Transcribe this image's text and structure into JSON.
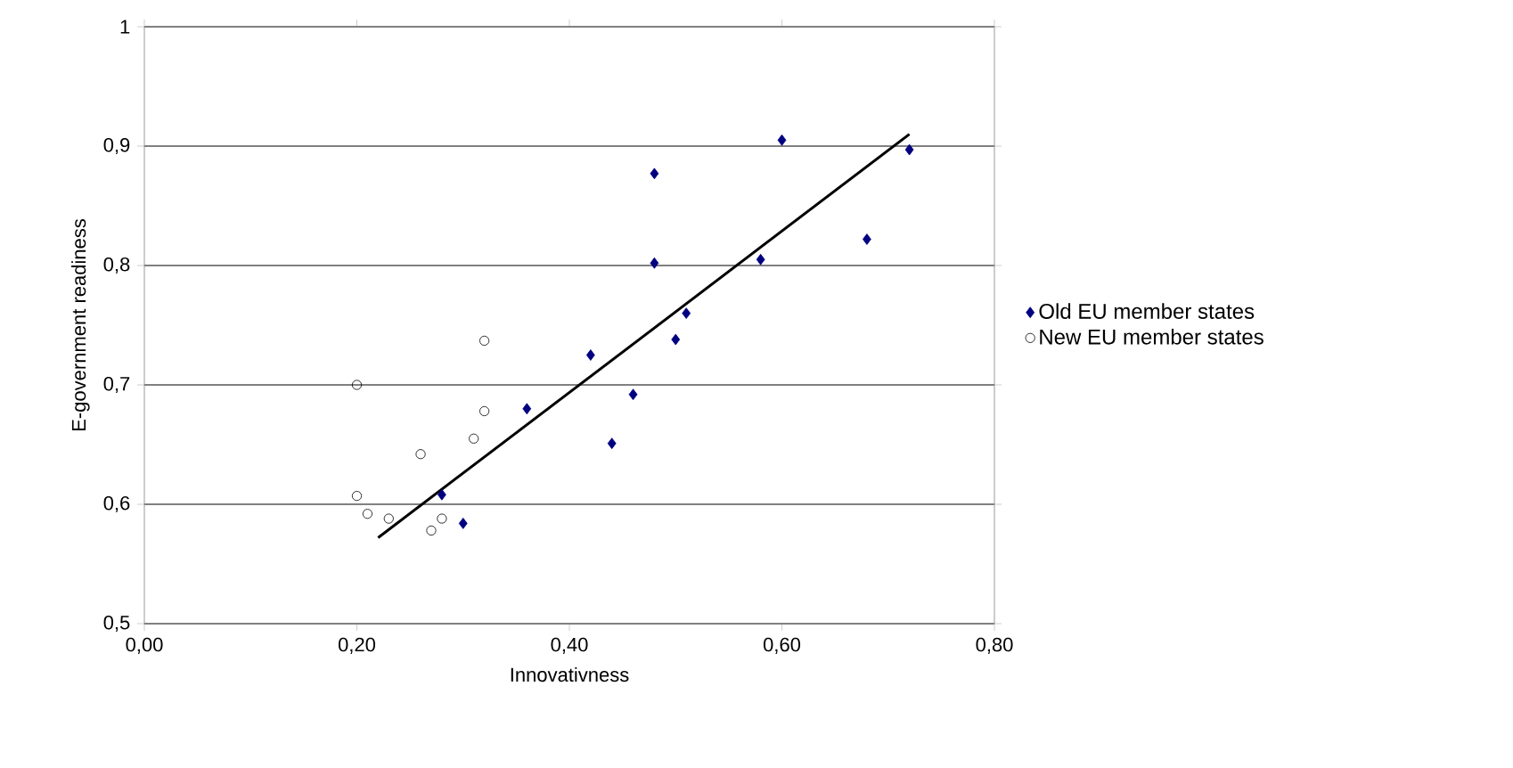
{
  "chart_data": {
    "type": "scatter",
    "xlabel": "Innovativness",
    "ylabel": "E-government readiness",
    "xlim": [
      0,
      0.8
    ],
    "ylim": [
      0.5,
      1
    ],
    "xticks": [
      {
        "value": 0,
        "label": "0,00"
      },
      {
        "value": 0.2,
        "label": "0,20"
      },
      {
        "value": 0.4,
        "label": "0,40"
      },
      {
        "value": 0.6,
        "label": "0,60"
      },
      {
        "value": 0.8,
        "label": "0,80"
      }
    ],
    "yticks": [
      {
        "value": 0.5,
        "label": "0,5"
      },
      {
        "value": 0.6,
        "label": "0,6"
      },
      {
        "value": 0.7,
        "label": "0,7"
      },
      {
        "value": 0.8,
        "label": "0,8"
      },
      {
        "value": 0.9,
        "label": "0,9"
      },
      1
    ],
    "grid": "y",
    "legend": "right",
    "series": [
      {
        "name": "Old EU member states",
        "color": "#000080",
        "marker": "diamond",
        "x": [
          0.6,
          0.72,
          0.48,
          0.48,
          0.58,
          0.68,
          0.51,
          0.5,
          0.42,
          0.46,
          0.36,
          0.44,
          0.28,
          0.3
        ],
        "values": [
          0.905,
          0.897,
          0.877,
          0.802,
          0.805,
          0.822,
          0.76,
          0.738,
          0.725,
          0.692,
          0.68,
          0.651,
          0.608,
          0.584
        ]
      },
      {
        "name": "New EU member states",
        "color": "#000000",
        "marker": "circle",
        "x": [
          0.2,
          0.32,
          0.32,
          0.31,
          0.26,
          0.2,
          0.21,
          0.23,
          0.28,
          0.27
        ],
        "values": [
          0.7,
          0.737,
          0.678,
          0.655,
          0.642,
          0.607,
          0.592,
          0.588,
          0.588,
          0.578
        ]
      },
      {
        "type": "line",
        "color": "#000000",
        "marker": "none",
        "x": [
          0.22,
          0.72
        ],
        "values": [
          0.572,
          0.91
        ]
      }
    ]
  }
}
